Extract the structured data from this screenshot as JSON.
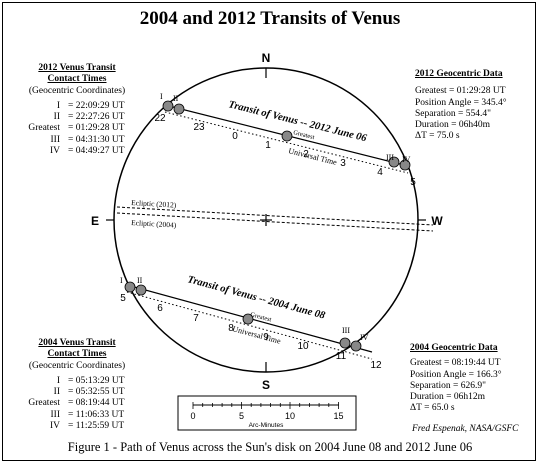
{
  "title": "2004 and 2012 Transits of Venus",
  "caption": "Figure 1 - Path of Venus across the Sun's disk on 2004 June 08 and 2012 June 06",
  "credit": "Fred Espenak, NASA/GSFC",
  "directions": {
    "north": "N",
    "south": "S",
    "east": "E",
    "west": "W"
  },
  "ecliptic_labels": {
    "y2012": "Ecliptic (2012)",
    "y2004": "Ecliptic (2004)"
  },
  "transit_2012": {
    "label": "Transit of Venus -- 2012 June 06",
    "universal_time": "Universal Time",
    "greatest_label": "Greatest",
    "contact_labels": [
      "I",
      "II",
      "III",
      "IV"
    ],
    "hour_ticks": [
      "22",
      "23",
      "0",
      "1",
      "2",
      "3",
      "4",
      "5"
    ],
    "panel_left": {
      "heading1": "2012 Venus Transit",
      "heading2": "Contact Times",
      "subheading": "(Geocentric Coordinates)",
      "rows": [
        {
          "label": "I",
          "value": "= 22:09:29 UT"
        },
        {
          "label": "II",
          "value": "= 22:27:26 UT"
        },
        {
          "label": "Greatest",
          "value": "= 01:29:28 UT"
        },
        {
          "label": "III",
          "value": "= 04:31:30 UT"
        },
        {
          "label": "IV",
          "value": "= 04:49:27 UT"
        }
      ]
    },
    "panel_right": {
      "heading": "2012 Geocentric Data",
      "rows": [
        {
          "label": "Greatest",
          "value": "= 01:29:28 UT"
        },
        {
          "label": "Position Angle",
          "value": "= 345.4°"
        },
        {
          "label": "Separation",
          "value": "= 554.4\""
        },
        {
          "label": "Duration",
          "value": "= 06h40m"
        },
        {
          "label": "ΔT",
          "value": "= 75.0 s"
        }
      ]
    }
  },
  "transit_2004": {
    "label": "Transit of Venus -- 2004 June 08",
    "universal_time": "Universal Time",
    "greatest_label": "Greatest",
    "contact_labels": [
      "I",
      "II",
      "III",
      "IV"
    ],
    "hour_ticks": [
      "5",
      "6",
      "7",
      "8",
      "9",
      "10",
      "11",
      "12"
    ],
    "panel_left": {
      "heading1": "2004 Venus Transit",
      "heading2": "Contact Times",
      "subheading": "(Geocentric Coordinates)",
      "rows": [
        {
          "label": "I",
          "value": "= 05:13:29 UT"
        },
        {
          "label": "II",
          "value": "= 05:32:55 UT"
        },
        {
          "label": "Greatest",
          "value": "= 08:19:44 UT"
        },
        {
          "label": "III",
          "value": "= 11:06:33 UT"
        },
        {
          "label": "IV",
          "value": "= 11:25:59 UT"
        }
      ]
    },
    "panel_right": {
      "heading": "2004 Geocentric Data",
      "rows": [
        {
          "label": "Greatest",
          "value": "= 08:19:44 UT"
        },
        {
          "label": "Position Angle",
          "value": "= 166.3°"
        },
        {
          "label": "Separation",
          "value": "= 626.9\""
        },
        {
          "label": "Duration",
          "value": "= 06h12m"
        },
        {
          "label": "ΔT",
          "value": "= 65.0 s"
        }
      ]
    }
  },
  "scale_bar": {
    "ticks": [
      "0",
      "5",
      "10",
      "15"
    ],
    "label": "Arc-Minutes"
  }
}
